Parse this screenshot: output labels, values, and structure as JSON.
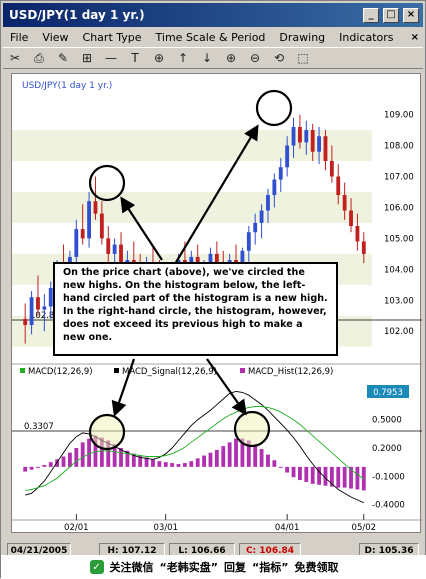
{
  "window": {
    "title": "USD/JPY(1 day  1 yr.)",
    "min_label": "_",
    "max_label": "□",
    "close_label": "×"
  },
  "menu": [
    "File",
    "View",
    "Chart Type",
    "Time Scale & Period",
    "Drawing",
    "Indicators"
  ],
  "menu_close": "×",
  "toolbar": [
    "✂",
    "⎙",
    "✎",
    "⊞",
    "—",
    "T",
    "⊕",
    "↑",
    "↓",
    "⊕",
    "⊖",
    "⟲",
    "⬚"
  ],
  "price_panel": {
    "legend": "USD/JPY(1 day  1 yr.)",
    "y_ticks": [
      "109.00",
      "108.00",
      "107.00",
      "106.00",
      "105.00",
      "104.00",
      "103.00",
      "102.00"
    ],
    "hline_label": "102.8"
  },
  "macd_panel": {
    "legend_macd": "MACD(12,26,9)",
    "legend_signal": "MACD_Signal(12,26,9)",
    "legend_hist": "MACD_Hist(12,26,9)",
    "value_box": "0.7953",
    "hline_label": "0.3307",
    "y_ticks": [
      "0.5000",
      "0.2000",
      "-0.1000",
      "-0.4000"
    ]
  },
  "x_ticks": [
    "02/01",
    "03/01",
    "04/01",
    "05/02"
  ],
  "status": {
    "date": "04/21/2005",
    "high": "H: 107.12",
    "low": "L: 106.66",
    "close": "C: 106.84",
    "diff": "D: 105.36"
  },
  "callout": "On the price chart (above), we've circled the new highs. On the histogram below, the left-hand circled part of the histogram is a new high. In the right-hand circle, the histogram, however, does not exceed its previous high to make a new one.",
  "watermark": {
    "prefix": "关注微信",
    "brand": "“老韩实盘”",
    "middle": "回复",
    "keyword": "“指标”",
    "suffix": "免费领取"
  },
  "colors": {
    "up_candle": "#3050d0",
    "down_candle": "#c02020",
    "macd": "#000000",
    "signal": "#20b020",
    "hist": "#b030b0",
    "value_box": "#1a8ab8"
  },
  "chart_data": {
    "type": "candlestick",
    "price": {
      "ylim": [
        101.2,
        109.6
      ],
      "candles": [
        [
          102.4,
          102.9,
          101.6,
          102.2
        ],
        [
          102.2,
          103.3,
          101.9,
          103.1
        ],
        [
          103.1,
          103.8,
          102.5,
          102.7
        ],
        [
          102.7,
          103.2,
          102.0,
          102.8
        ],
        [
          102.8,
          103.6,
          102.4,
          103.4
        ],
        [
          103.4,
          104.3,
          103.0,
          104.0
        ],
        [
          104.0,
          104.8,
          103.5,
          103.8
        ],
        [
          103.8,
          104.6,
          103.3,
          104.4
        ],
        [
          104.4,
          105.6,
          104.0,
          105.3
        ],
        [
          105.3,
          106.1,
          104.8,
          105.0
        ],
        [
          105.0,
          106.5,
          104.7,
          106.2
        ],
        [
          106.2,
          107.0,
          105.6,
          105.8
        ],
        [
          105.8,
          106.2,
          104.8,
          105.0
        ],
        [
          105.0,
          105.4,
          104.2,
          104.5
        ],
        [
          104.5,
          105.0,
          103.8,
          104.8
        ],
        [
          104.8,
          105.2,
          103.9,
          104.1
        ],
        [
          104.1,
          104.6,
          103.5,
          104.3
        ],
        [
          104.3,
          104.9,
          103.9,
          104.0
        ],
        [
          104.0,
          104.5,
          103.3,
          103.6
        ],
        [
          103.6,
          104.4,
          103.2,
          104.2
        ],
        [
          104.2,
          104.7,
          103.6,
          103.9
        ],
        [
          103.9,
          104.3,
          103.0,
          103.4
        ],
        [
          103.4,
          104.0,
          103.0,
          103.8
        ],
        [
          103.8,
          104.2,
          103.2,
          103.5
        ],
        [
          103.5,
          104.5,
          103.3,
          104.3
        ],
        [
          104.3,
          104.9,
          103.8,
          104.0
        ],
        [
          104.0,
          104.6,
          103.4,
          104.4
        ],
        [
          104.4,
          104.8,
          103.7,
          103.9
        ],
        [
          103.9,
          104.3,
          103.4,
          104.1
        ],
        [
          104.1,
          104.7,
          103.8,
          104.5
        ],
        [
          104.5,
          104.9,
          103.9,
          104.2
        ],
        [
          104.2,
          104.6,
          103.5,
          103.8
        ],
        [
          103.8,
          104.5,
          103.6,
          104.3
        ],
        [
          104.3,
          104.8,
          103.9,
          104.0
        ],
        [
          104.0,
          104.7,
          103.7,
          104.6
        ],
        [
          104.6,
          105.4,
          104.2,
          105.2
        ],
        [
          105.2,
          105.8,
          104.8,
          105.5
        ],
        [
          105.5,
          106.1,
          105.0,
          105.9
        ],
        [
          105.9,
          106.6,
          105.5,
          106.4
        ],
        [
          106.4,
          107.1,
          106.0,
          106.9
        ],
        [
          106.9,
          107.6,
          106.5,
          107.3
        ],
        [
          107.3,
          108.3,
          107.0,
          108.0
        ],
        [
          108.0,
          108.9,
          107.6,
          108.6
        ],
        [
          108.6,
          109.0,
          107.9,
          108.1
        ],
        [
          108.1,
          108.8,
          107.7,
          108.5
        ],
        [
          108.5,
          108.7,
          107.5,
          107.8
        ],
        [
          107.8,
          108.6,
          107.4,
          108.3
        ],
        [
          108.3,
          108.5,
          107.2,
          107.5
        ],
        [
          107.5,
          108.0,
          106.8,
          107.0
        ],
        [
          107.0,
          107.4,
          106.1,
          106.4
        ],
        [
          106.4,
          106.8,
          105.6,
          105.9
        ],
        [
          105.9,
          106.3,
          105.2,
          105.4
        ],
        [
          105.4,
          105.8,
          104.6,
          104.9
        ],
        [
          104.9,
          105.2,
          104.2,
          104.5
        ]
      ]
    },
    "macd": {
      "ylim": [
        -0.5,
        0.9
      ],
      "hist": [
        -0.05,
        -0.03,
        0.0,
        0.02,
        0.05,
        0.08,
        0.11,
        0.15,
        0.2,
        0.26,
        0.3,
        0.33,
        0.31,
        0.28,
        0.24,
        0.2,
        0.17,
        0.14,
        0.12,
        0.1,
        0.08,
        0.06,
        0.05,
        0.04,
        0.03,
        0.04,
        0.06,
        0.09,
        0.12,
        0.15,
        0.18,
        0.22,
        0.26,
        0.3,
        0.3,
        0.28,
        0.24,
        0.19,
        0.13,
        0.07,
        0.0,
        -0.06,
        -0.11,
        -0.14,
        -0.16,
        -0.18,
        -0.19,
        -0.2,
        -0.21,
        -0.22,
        -0.22,
        -0.23,
        -0.24,
        -0.25
      ],
      "macd": [
        -0.3,
        -0.28,
        -0.22,
        -0.15,
        -0.05,
        0.05,
        0.15,
        0.25,
        0.32,
        0.36,
        0.35,
        0.32,
        0.28,
        0.25,
        0.22,
        0.18,
        0.15,
        0.12,
        0.1,
        0.09,
        0.08,
        0.1,
        0.14,
        0.2,
        0.28,
        0.36,
        0.44,
        0.5,
        0.55,
        0.6,
        0.66,
        0.72,
        0.78,
        0.8,
        0.79,
        0.76,
        0.71,
        0.66,
        0.6,
        0.53,
        0.46,
        0.39,
        0.31,
        0.22,
        0.12,
        0.03,
        -0.05,
        -0.12,
        -0.18,
        -0.24,
        -0.28,
        -0.32,
        -0.35,
        -0.38
      ],
      "signal": [
        -0.25,
        -0.24,
        -0.22,
        -0.2,
        -0.16,
        -0.12,
        -0.06,
        0.0,
        0.06,
        0.1,
        0.14,
        0.16,
        0.17,
        0.17,
        0.16,
        0.15,
        0.14,
        0.13,
        0.12,
        0.11,
        0.11,
        0.11,
        0.12,
        0.14,
        0.17,
        0.21,
        0.26,
        0.31,
        0.36,
        0.41,
        0.46,
        0.51,
        0.55,
        0.58,
        0.61,
        0.63,
        0.64,
        0.64,
        0.63,
        0.61,
        0.58,
        0.54,
        0.5,
        0.45,
        0.39,
        0.33,
        0.27,
        0.21,
        0.15,
        0.09,
        0.03,
        -0.03,
        -0.08,
        -0.13
      ]
    }
  }
}
